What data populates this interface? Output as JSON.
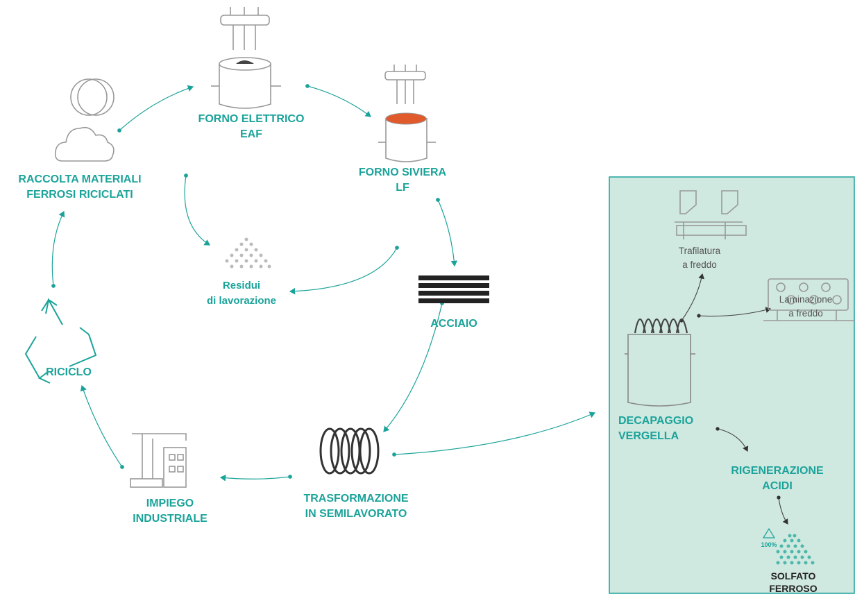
{
  "nodes": [
    {
      "lines": [
        "FORNO ELETTRICO",
        "EAF"
      ]
    },
    {
      "lines": [
        "FORNO SIVIERA",
        "LF"
      ]
    },
    {
      "lines": [
        "ACCIAIO"
      ]
    },
    {
      "lines": [
        "TRASFORMAZIONE",
        "IN SEMILAVORATO"
      ]
    },
    {
      "lines": [
        "IMPIEGO",
        "INDUSTRIALE"
      ]
    },
    {
      "lines": [
        "RICICLO"
      ]
    },
    {
      "lines": [
        "RACCOLTA MATERIALI",
        "FERROSI RICICLATI"
      ]
    },
    {
      "lines": [
        "Residui",
        "di lavorazione"
      ]
    }
  ],
  "panel": {
    "nodes": [
      {
        "lines": [
          "DECAPAGGIO",
          "VERGELLA"
        ]
      },
      {
        "lines": [
          "RIGENERAZIONE",
          "ACIDI"
        ]
      },
      {
        "lines": [
          "SOLFATO",
          "FERROSO"
        ]
      },
      {
        "lines": [
          "Trafilatura",
          "a freddo"
        ]
      },
      {
        "lines": [
          "Laminazione",
          "a freddo"
        ]
      }
    ],
    "badge": "100%"
  }
}
